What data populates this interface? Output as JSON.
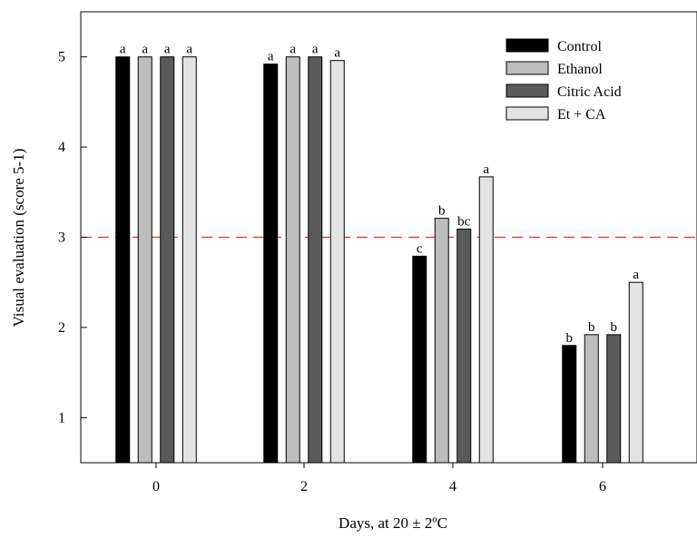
{
  "chart_data": {
    "type": "bar",
    "title": "",
    "xlabel": "Days, at 20 ± 2ºC",
    "ylabel": "Visual evaluation  (score 5-1)",
    "categories": [
      "0",
      "2",
      "4",
      "6"
    ],
    "yticks": [
      "1",
      "2",
      "3",
      "4",
      "5"
    ],
    "ylim": [
      0.5,
      5.5
    ],
    "grid": false,
    "legend_position": "top-right",
    "reference_line": {
      "y": 3,
      "style": "dashed",
      "color": "#e03030"
    },
    "series": [
      {
        "name": "Control",
        "color": "#000000",
        "values": [
          5.0,
          4.92,
          2.79,
          1.8
        ],
        "letters": [
          "a",
          "a",
          "c",
          "b"
        ]
      },
      {
        "name": "Ethanol",
        "color": "#bdbdbd",
        "values": [
          5.0,
          5.0,
          3.21,
          1.92
        ],
        "letters": [
          "a",
          "a",
          "b",
          "b"
        ]
      },
      {
        "name": "Citric Acid",
        "color": "#5a5a5a",
        "values": [
          5.0,
          5.0,
          3.09,
          1.92
        ],
        "letters": [
          "a",
          "a",
          "bc",
          "b"
        ]
      },
      {
        "name": "Et + CA",
        "color": "#e3e3e3",
        "values": [
          5.0,
          4.96,
          3.67,
          2.5
        ],
        "letters": [
          "a",
          "a",
          "a",
          "a"
        ]
      }
    ]
  }
}
